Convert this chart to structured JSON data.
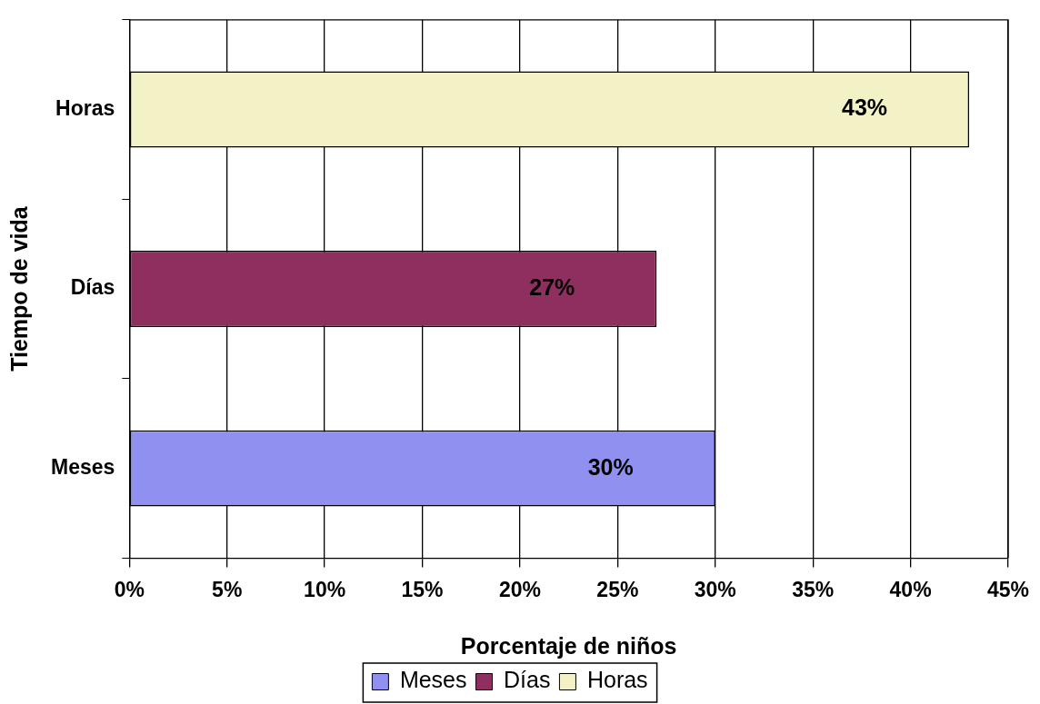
{
  "chart_data": {
    "type": "bar",
    "orientation": "horizontal",
    "xlabel": "Porcentaje de niños",
    "ylabel": "Tiempo de vida",
    "categories": [
      "Horas",
      "Días",
      "Meses"
    ],
    "series": [
      {
        "name": "Meses",
        "color": "#9090f0",
        "values": [
          null,
          null,
          30
        ],
        "value_labels": [
          null,
          null,
          "30%"
        ]
      },
      {
        "name": "Días",
        "color": "#8e2f5f",
        "values": [
          null,
          27,
          null
        ],
        "value_labels": [
          null,
          "27%",
          null
        ]
      },
      {
        "name": "Horas",
        "color": "#f2f2c6",
        "values": [
          43,
          null,
          null
        ],
        "value_labels": [
          "43%",
          null,
          null
        ]
      }
    ],
    "xlim": [
      0,
      45
    ],
    "xticks": [
      {
        "value": 0,
        "label": "0%"
      },
      {
        "value": 5,
        "label": "5%"
      },
      {
        "value": 10,
        "label": "10%"
      },
      {
        "value": 15,
        "label": "15%"
      },
      {
        "value": 20,
        "label": "20%"
      },
      {
        "value": 25,
        "label": "25%"
      },
      {
        "value": 30,
        "label": "30%"
      },
      {
        "value": 35,
        "label": "35%"
      },
      {
        "value": 40,
        "label": "40%"
      },
      {
        "value": 45,
        "label": "45%"
      }
    ],
    "grid": "x",
    "legend": "bottom"
  }
}
